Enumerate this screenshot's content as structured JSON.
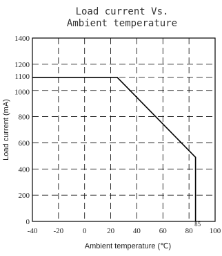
{
  "chart_data": {
    "type": "line",
    "title_lines": [
      "Load current Vs.",
      "Ambient temperature"
    ],
    "xlabel": "Ambient temperature (℃)",
    "ylabel": "Load current (mA)",
    "xlim": [
      -40,
      100
    ],
    "ylim": [
      0,
      1400
    ],
    "x_ticks": [
      -40,
      -20,
      0,
      20,
      40,
      60,
      80,
      100
    ],
    "y_ticks": [
      0,
      200,
      400,
      600,
      800,
      1000,
      1100,
      1200,
      1400
    ],
    "grid": true,
    "series": [
      {
        "x": [
          -40,
          25,
          85,
          85
        ],
        "y": [
          1100,
          1100,
          490,
          0
        ]
      }
    ],
    "annotations": [
      {
        "text": "85",
        "x": 85,
        "y": 0
      }
    ]
  }
}
